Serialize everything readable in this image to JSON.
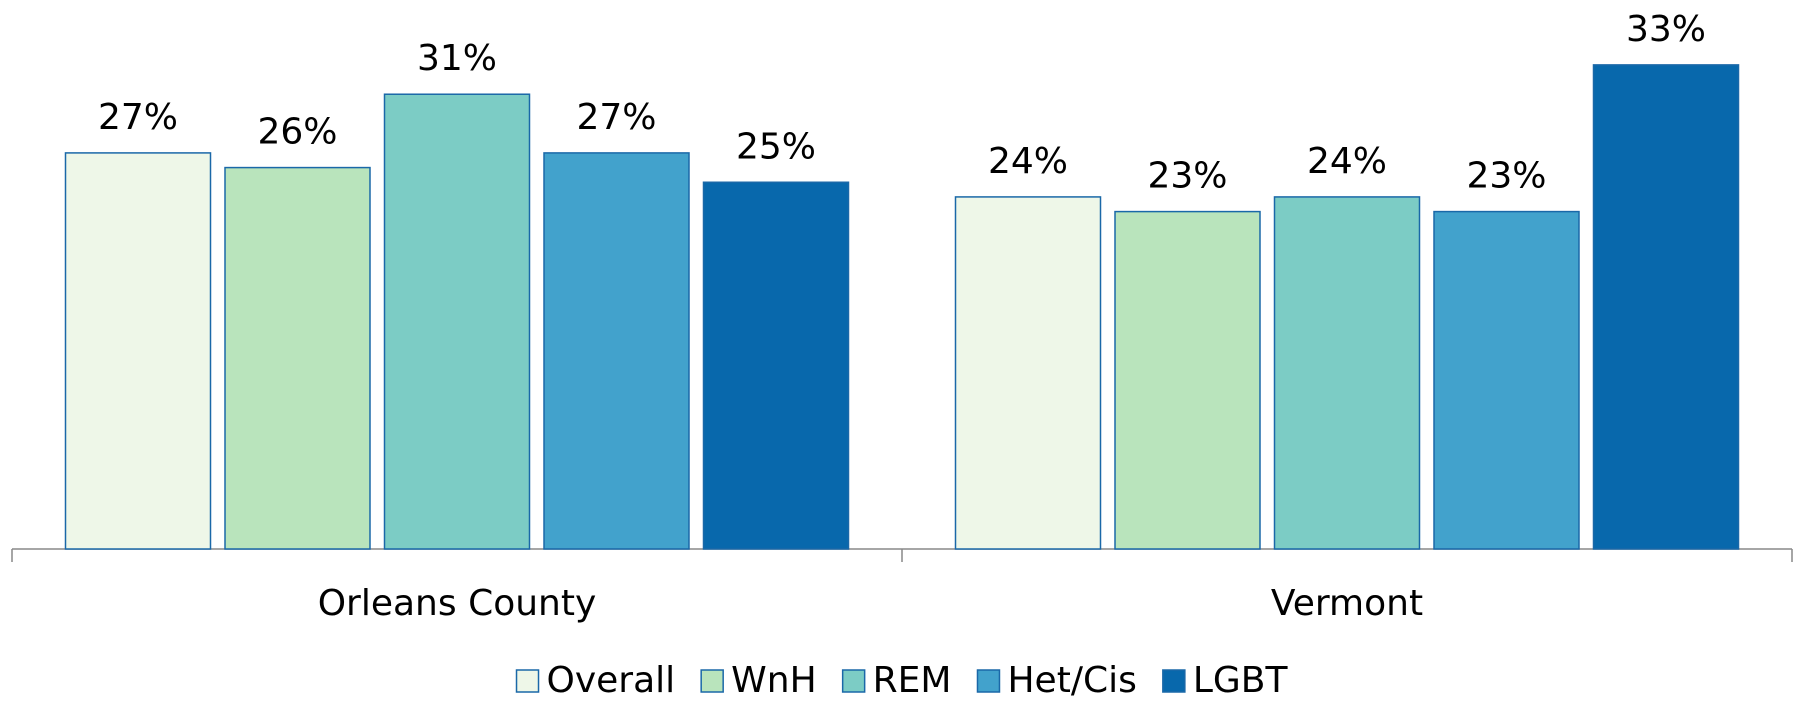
{
  "chart_data": {
    "type": "bar",
    "categories": [
      "Orleans County",
      "Vermont"
    ],
    "series": [
      {
        "name": "Overall",
        "color": "#eef7e8",
        "values": [
          27,
          24
        ],
        "value_labels": [
          "27%",
          "24%"
        ]
      },
      {
        "name": "WnH",
        "color": "#b9e4bc",
        "values": [
          26,
          23
        ],
        "value_labels": [
          "26%",
          "23%"
        ]
      },
      {
        "name": "REM",
        "color": "#7cccc5",
        "values": [
          31,
          24
        ],
        "value_labels": [
          "31%",
          "24%"
        ]
      },
      {
        "name": "Het/Cis",
        "color": "#42a2cc",
        "values": [
          27,
          23
        ],
        "value_labels": [
          "27%",
          "23%"
        ]
      },
      {
        "name": "LGBT",
        "color": "#0868ac",
        "values": [
          25,
          33
        ],
        "value_labels": [
          "25%",
          "33%"
        ]
      }
    ],
    "legend": "bottom"
  }
}
